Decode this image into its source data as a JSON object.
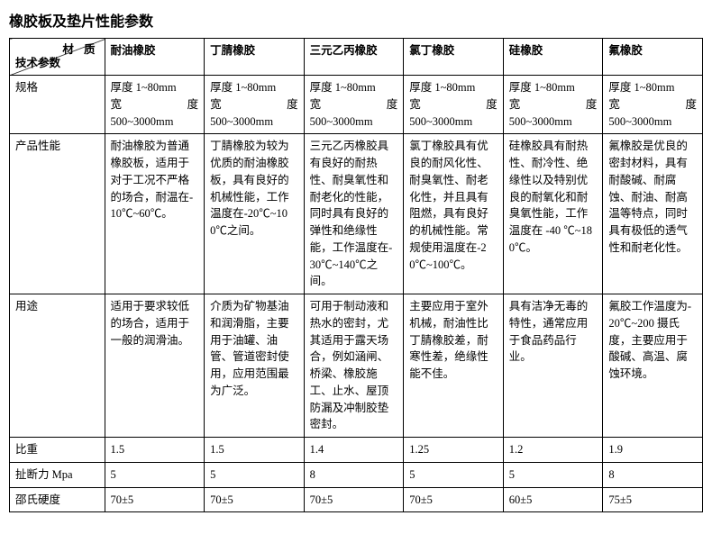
{
  "title": "橡胶板及垫片性能参数",
  "header": {
    "diag_top": "材 质",
    "diag_bottom": "技术参数",
    "cols": [
      "耐油橡胶",
      "丁腈橡胶",
      "三元乙丙橡胶",
      "氯丁橡胶",
      "硅橡胶",
      "氟橡胶"
    ]
  },
  "rows": {
    "spec_label": "规格",
    "spec_thick": "厚度 1~80mm",
    "spec_wide_label": "宽度",
    "spec_wide_val": "500~3000mm",
    "perf_label": "产品性能",
    "perf": [
      "耐油橡胶为普通橡胶板，适用于对于工况不严格的场合，耐温在-10℃~60℃。",
      "丁腈橡胶为较为优质的耐油橡胶板，具有良好的机械性能，工作温度在-20℃~100℃之间。",
      "三元乙丙橡胶具有良好的耐热性、耐臭氧性和耐老化的性能，同时具有良好的弹性和绝缘性能，工作温度在-30℃~140℃之间。",
      "氯丁橡胶具有优良的耐风化性、耐臭氧性、耐老化性，并且具有阻燃，具有良好的机械性能。常规使用温度在-20℃~100℃。",
      "硅橡胶具有耐热性、耐冷性、绝缘性以及特别优良的耐氧化和耐臭氧性能，工作温度在 -40 ℃~180℃。",
      "氟橡胶是优良的密封材料，具有耐酸碱、耐腐蚀、耐油、耐高温等特点，同时具有极低的透气性和耐老化性。"
    ],
    "use_label": "用途",
    "use": [
      "适用于要求较低的场合，适用于一般的润滑油。",
      "介质为矿物基油和润滑脂，主要用于油罐、油管、管道密封使用，应用范围最为广泛。",
      "可用于制动液和热水的密封，尤其适用于露天场合，例如涵闸、桥梁、橡胶施工、止水、屋顶防漏及冲制胶垫密封。",
      "主要应用于室外机械，耐油性比丁腈橡胶差，耐寒性差，绝缘性能不佳。",
      "具有洁净无毒的特性，通常应用于食品药品行业。",
      "氟胶工作温度为-20℃~200 摄氏度，主要应用于酸碱、高温、腐蚀环境。"
    ],
    "density_label": "比重",
    "density": [
      "1.5",
      "1.5",
      "1.4",
      "1.25",
      "1.2",
      "1.9"
    ],
    "tensile_label": "扯断力 Mpa",
    "tensile": [
      "5",
      "5",
      "8",
      "5",
      "5",
      "8"
    ],
    "hardness_label": "邵氏硬度",
    "hardness": [
      "70±5",
      "70±5",
      "70±5",
      "70±5",
      "60±5",
      "75±5"
    ]
  }
}
